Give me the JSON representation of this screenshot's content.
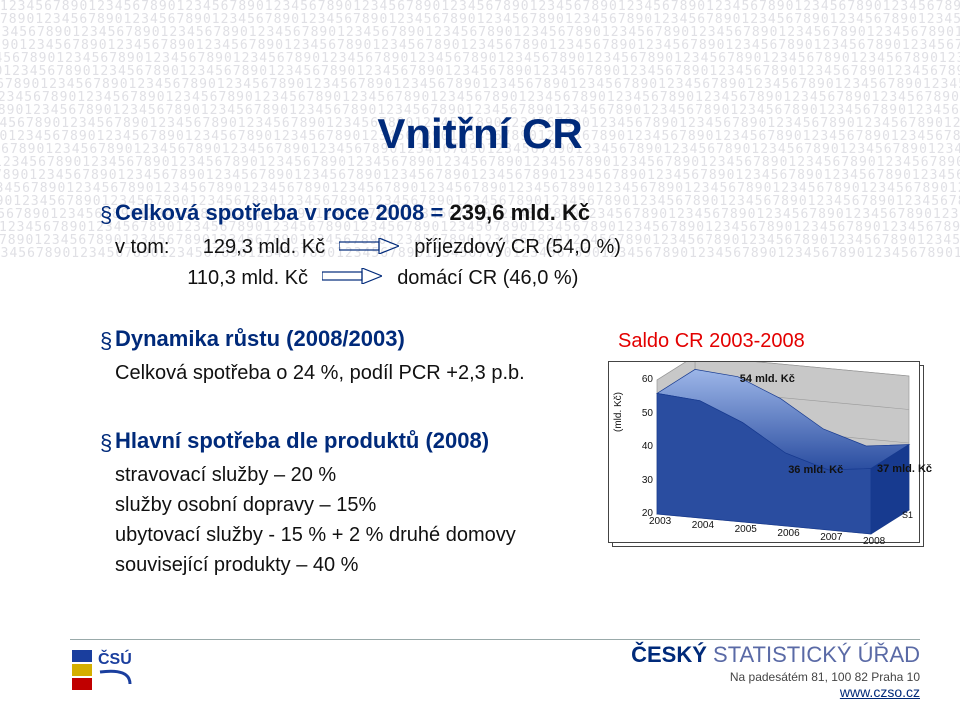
{
  "background": {
    "text_color": "#e0e0e5",
    "digits": "1234567890",
    "rows": 20
  },
  "title": "Vnitřní CR",
  "section1": {
    "heading_prefix": "Celková spotřeba v roce 2008 = ",
    "heading_value": "239,6 mld. Kč",
    "vtom_label": "v tom:",
    "row_a_value": "129,3 mld. Kč",
    "row_a_cat": "příjezdový CR (54,0 %)",
    "row_b_value": "110,3 mld. Kč",
    "row_b_cat": "domácí CR (46,0 %)"
  },
  "section2": {
    "heading": "Dynamika růstu (2008/2003)",
    "sub": "Celková spotřeba o 24 %, podíl PCR +2,3 p.b."
  },
  "section3": {
    "heading": "Hlavní spotřeba dle produktů (2008)",
    "items": [
      "stravovací služby – 20 %",
      "služby osobní dopravy – 15%",
      "ubytovací služby  - 15 % + 2 % druhé domovy",
      "související produkty – 40 %"
    ]
  },
  "chart": {
    "title": "Saldo CR 2003-2008",
    "ylabel": "(mld. Kč)",
    "series_name": "S1",
    "years": [
      "2003",
      "2004",
      "2005",
      "2006",
      "2007",
      "2008"
    ],
    "values": [
      56,
      54,
      48,
      40,
      36,
      37
    ],
    "ylim": [
      20,
      60
    ],
    "ytick_step": 10,
    "labels": [
      {
        "text": "54 mld. Kč",
        "ix": 1
      },
      {
        "text": "36 mld. Kč",
        "ix": 4
      },
      {
        "text": "37 mld. Kč",
        "ix": 5
      }
    ],
    "colors": {
      "surface_top": "#9db6e8",
      "surface_bottom": "#2a4da0",
      "edge": "#173a8f",
      "floor": "#d8d8d8",
      "wall": "#c8c8c8",
      "grid": "#9a9a9a",
      "frame": "#444444",
      "background": "#ffffff"
    },
    "label_fontsize": 11,
    "tick_fontsize": 10
  },
  "arrow_color": "#002a7a",
  "footer": {
    "org_dark": "ČESKÝ",
    "org_light": " STATISTICKÝ ÚŘAD",
    "address": "Na padesátém 81, 100 82  Praha 10",
    "url": "www.czso.cz"
  }
}
